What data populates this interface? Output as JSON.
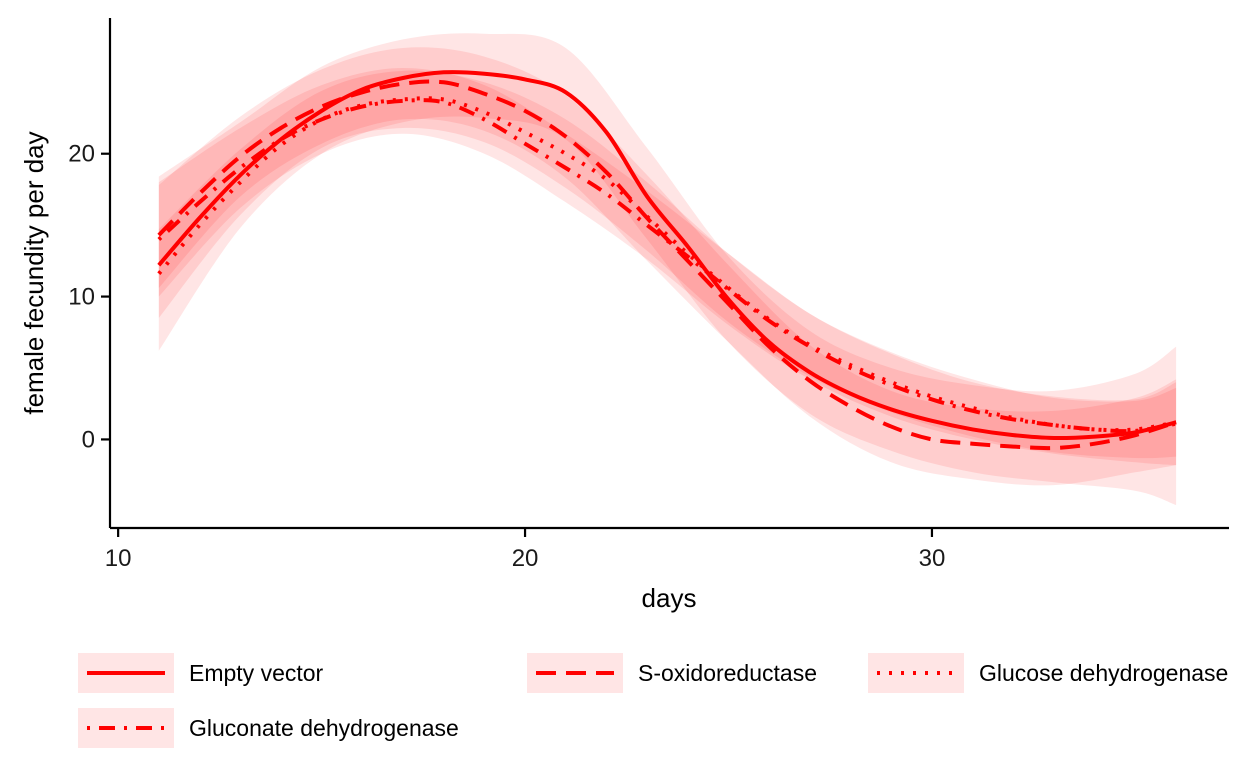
{
  "chart_data": {
    "type": "line",
    "xlabel": "days",
    "ylabel": "female fecundity per day",
    "xlim": [
      9.8,
      37.3
    ],
    "ylim": [
      -6.2,
      29.5
    ],
    "x_ticks": [
      10,
      20,
      30
    ],
    "y_ticks": [
      0,
      10,
      20
    ],
    "grid": false,
    "legend_position": "bottom",
    "line_color": "#ff0000",
    "band_color": "#ff0000",
    "series": [
      {
        "name": "Empty vector",
        "dash": "solid",
        "points": [
          [
            11,
            12.2
          ],
          [
            12,
            15.5
          ],
          [
            13,
            18.5
          ],
          [
            14,
            21.0
          ],
          [
            15,
            23.0
          ],
          [
            16,
            24.5
          ],
          [
            17,
            25.3
          ],
          [
            18,
            25.7
          ],
          [
            19,
            25.6
          ],
          [
            20,
            25.2
          ],
          [
            21,
            24.3
          ],
          [
            22,
            21.5
          ],
          [
            23,
            17.0
          ],
          [
            24,
            13.5
          ],
          [
            25,
            9.8
          ],
          [
            26,
            6.8
          ],
          [
            27,
            4.7
          ],
          [
            28,
            3.2
          ],
          [
            29,
            2.1
          ],
          [
            30,
            1.3
          ],
          [
            31,
            0.7
          ],
          [
            32,
            0.3
          ],
          [
            33,
            0.1
          ],
          [
            34,
            0.2
          ],
          [
            35,
            0.5
          ],
          [
            36,
            1.2
          ]
        ],
        "band": [
          [
            11,
            6.2,
            18.4
          ],
          [
            13,
            14.8,
            22.2
          ],
          [
            15,
            20.0,
            26.1
          ],
          [
            17,
            22.2,
            28.0
          ],
          [
            19,
            22.5,
            28.4
          ],
          [
            21,
            21.0,
            27.4
          ],
          [
            23,
            14.0,
            20.4
          ],
          [
            25,
            6.8,
            12.8
          ],
          [
            27,
            1.8,
            7.6
          ],
          [
            29,
            -0.8,
            5.0
          ],
          [
            31,
            -2.3,
            3.8
          ],
          [
            33,
            -3.0,
            3.4
          ],
          [
            35,
            -3.6,
            4.6
          ],
          [
            36,
            -4.6,
            6.5
          ]
        ]
      },
      {
        "name": "S-oxidoreductase",
        "dash": "long-dash",
        "points": [
          [
            11,
            14.3
          ],
          [
            12,
            17.2
          ],
          [
            13,
            19.8
          ],
          [
            14,
            21.8
          ],
          [
            15,
            23.3
          ],
          [
            16,
            24.3
          ],
          [
            17,
            24.9
          ],
          [
            18,
            25.0
          ],
          [
            19,
            24.2
          ],
          [
            20,
            23.0
          ],
          [
            21,
            21.2
          ],
          [
            22,
            18.7
          ],
          [
            23,
            15.5
          ],
          [
            24,
            12.5
          ],
          [
            25,
            9.5
          ],
          [
            26,
            6.5
          ],
          [
            27,
            4.1
          ],
          [
            28,
            2.3
          ],
          [
            29,
            0.9
          ],
          [
            30,
            0.0
          ],
          [
            31,
            -0.3
          ],
          [
            32,
            -0.5
          ],
          [
            33,
            -0.6
          ],
          [
            34,
            -0.3
          ],
          [
            35,
            0.3
          ],
          [
            36,
            1.2
          ]
        ],
        "band": [
          [
            11,
            10.6,
            17.8
          ],
          [
            13,
            17.0,
            22.6
          ],
          [
            15,
            20.7,
            25.9
          ],
          [
            17,
            22.4,
            27.4
          ],
          [
            19,
            21.6,
            26.8
          ],
          [
            21,
            18.3,
            24.1
          ],
          [
            23,
            12.5,
            18.5
          ],
          [
            25,
            6.8,
            12.2
          ],
          [
            27,
            1.6,
            6.6
          ],
          [
            29,
            -1.6,
            3.4
          ],
          [
            31,
            -2.8,
            2.2
          ],
          [
            33,
            -3.2,
            2.0
          ],
          [
            35,
            -2.3,
            2.9
          ],
          [
            36,
            -1.8,
            4.2
          ]
        ]
      },
      {
        "name": "Glucose dehydrogenase",
        "dash": "dotted",
        "points": [
          [
            11,
            11.6
          ],
          [
            12,
            15.0
          ],
          [
            13,
            18.0
          ],
          [
            14,
            20.6
          ],
          [
            15,
            22.4
          ],
          [
            16,
            23.4
          ],
          [
            17,
            23.8
          ],
          [
            18,
            23.8
          ],
          [
            19,
            22.9
          ],
          [
            20,
            21.5
          ],
          [
            21,
            20.0
          ],
          [
            22,
            18.2
          ],
          [
            23,
            15.6
          ],
          [
            24,
            13.0
          ],
          [
            25,
            10.6
          ],
          [
            26,
            8.4
          ],
          [
            27,
            6.6
          ],
          [
            28,
            5.2
          ],
          [
            29,
            4.0
          ],
          [
            30,
            3.0
          ],
          [
            31,
            2.2
          ],
          [
            32,
            1.5
          ],
          [
            33,
            1.0
          ],
          [
            34,
            0.7
          ],
          [
            35,
            0.7
          ],
          [
            36,
            1.2
          ]
        ],
        "band": [
          [
            11,
            8.5,
            14.7
          ],
          [
            13,
            15.7,
            20.3
          ],
          [
            15,
            20.4,
            24.4
          ],
          [
            17,
            21.8,
            25.8
          ],
          [
            19,
            20.8,
            25.0
          ],
          [
            21,
            17.6,
            22.4
          ],
          [
            23,
            13.2,
            18.0
          ],
          [
            25,
            8.2,
            13.0
          ],
          [
            27,
            4.4,
            8.8
          ],
          [
            29,
            1.9,
            6.1
          ],
          [
            31,
            0.2,
            4.2
          ],
          [
            33,
            -0.9,
            2.9
          ],
          [
            35,
            -1.3,
            2.7
          ],
          [
            36,
            -1.2,
            3.6
          ]
        ]
      },
      {
        "name": "Gluconate dehydrogenase",
        "dash": "dot-dash",
        "points": [
          [
            11,
            14.0
          ],
          [
            12,
            16.6
          ],
          [
            13,
            19.0
          ],
          [
            14,
            21.0
          ],
          [
            15,
            22.4
          ],
          [
            16,
            23.3
          ],
          [
            17,
            23.7
          ],
          [
            18,
            23.6
          ],
          [
            19,
            22.4
          ],
          [
            20,
            20.7
          ],
          [
            21,
            19.0
          ],
          [
            22,
            17.2
          ],
          [
            23,
            15.0
          ],
          [
            24,
            12.8
          ],
          [
            25,
            10.5
          ],
          [
            26,
            8.3
          ],
          [
            27,
            6.5
          ],
          [
            28,
            5.0
          ],
          [
            29,
            3.8
          ],
          [
            30,
            2.8
          ],
          [
            31,
            2.0
          ],
          [
            32,
            1.4
          ],
          [
            33,
            1.0
          ],
          [
            34,
            0.7
          ],
          [
            35,
            0.6
          ],
          [
            36,
            1.1
          ]
        ],
        "band": [
          [
            11,
            10.0,
            18.0
          ],
          [
            13,
            16.2,
            21.8
          ],
          [
            15,
            20.0,
            24.8
          ],
          [
            17,
            21.4,
            26.0
          ],
          [
            19,
            20.0,
            24.8
          ],
          [
            21,
            16.6,
            21.4
          ],
          [
            23,
            12.6,
            17.4
          ],
          [
            25,
            8.0,
            13.0
          ],
          [
            27,
            4.2,
            8.8
          ],
          [
            29,
            1.6,
            6.0
          ],
          [
            31,
            0.0,
            4.0
          ],
          [
            33,
            -1.0,
            3.0
          ],
          [
            35,
            -1.6,
            2.8
          ],
          [
            36,
            -1.8,
            4.0
          ]
        ]
      }
    ]
  }
}
